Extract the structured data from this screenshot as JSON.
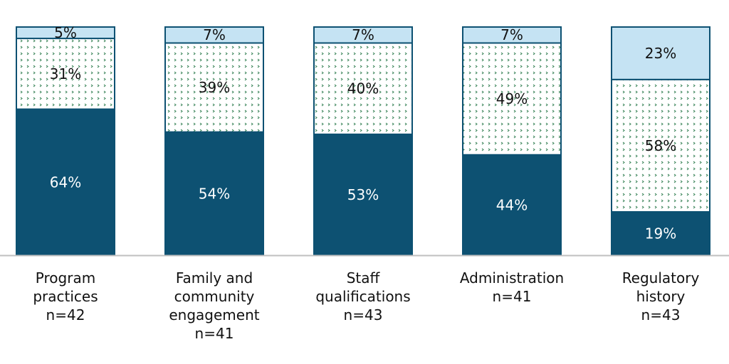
{
  "chart_data": {
    "type": "bar",
    "stacked": true,
    "orientation": "vertical",
    "categories": [
      {
        "lines": [
          "Program",
          "practices",
          "n=42"
        ]
      },
      {
        "lines": [
          "Family and",
          "community",
          "engagement",
          "n=41"
        ]
      },
      {
        "lines": [
          "Staff",
          "qualifications",
          "n=43"
        ]
      },
      {
        "lines": [
          "Administration",
          "n=41"
        ]
      },
      {
        "lines": [
          "Regulatory",
          "history",
          "n=43"
        ]
      }
    ],
    "series": [
      {
        "values": [
          64,
          54,
          53,
          44,
          19
        ],
        "labels": [
          "64%",
          "54%",
          "53%",
          "44%",
          "19%"
        ],
        "color": "#0d5172",
        "pattern": "solid",
        "label_color": "#ffffff"
      },
      {
        "values": [
          31,
          39,
          40,
          49,
          58
        ],
        "labels": [
          "31%",
          "39%",
          "40%",
          "49%",
          "58%"
        ],
        "color": "#ffffff",
        "pattern": "dotted-green",
        "pattern_color": "#2e7d4f",
        "label_color": "#111111"
      },
      {
        "values": [
          5,
          7,
          7,
          7,
          23
        ],
        "labels": [
          "5%",
          "7%",
          "7%",
          "7%",
          "23%"
        ],
        "color": "#c5e3f3",
        "pattern": "solid",
        "label_color": "#111111"
      }
    ],
    "ylim": [
      0,
      100
    ],
    "grid": false,
    "legend": "none",
    "bar_outline_color": "#0d5172",
    "baseline_color": "#bfbfbf"
  }
}
